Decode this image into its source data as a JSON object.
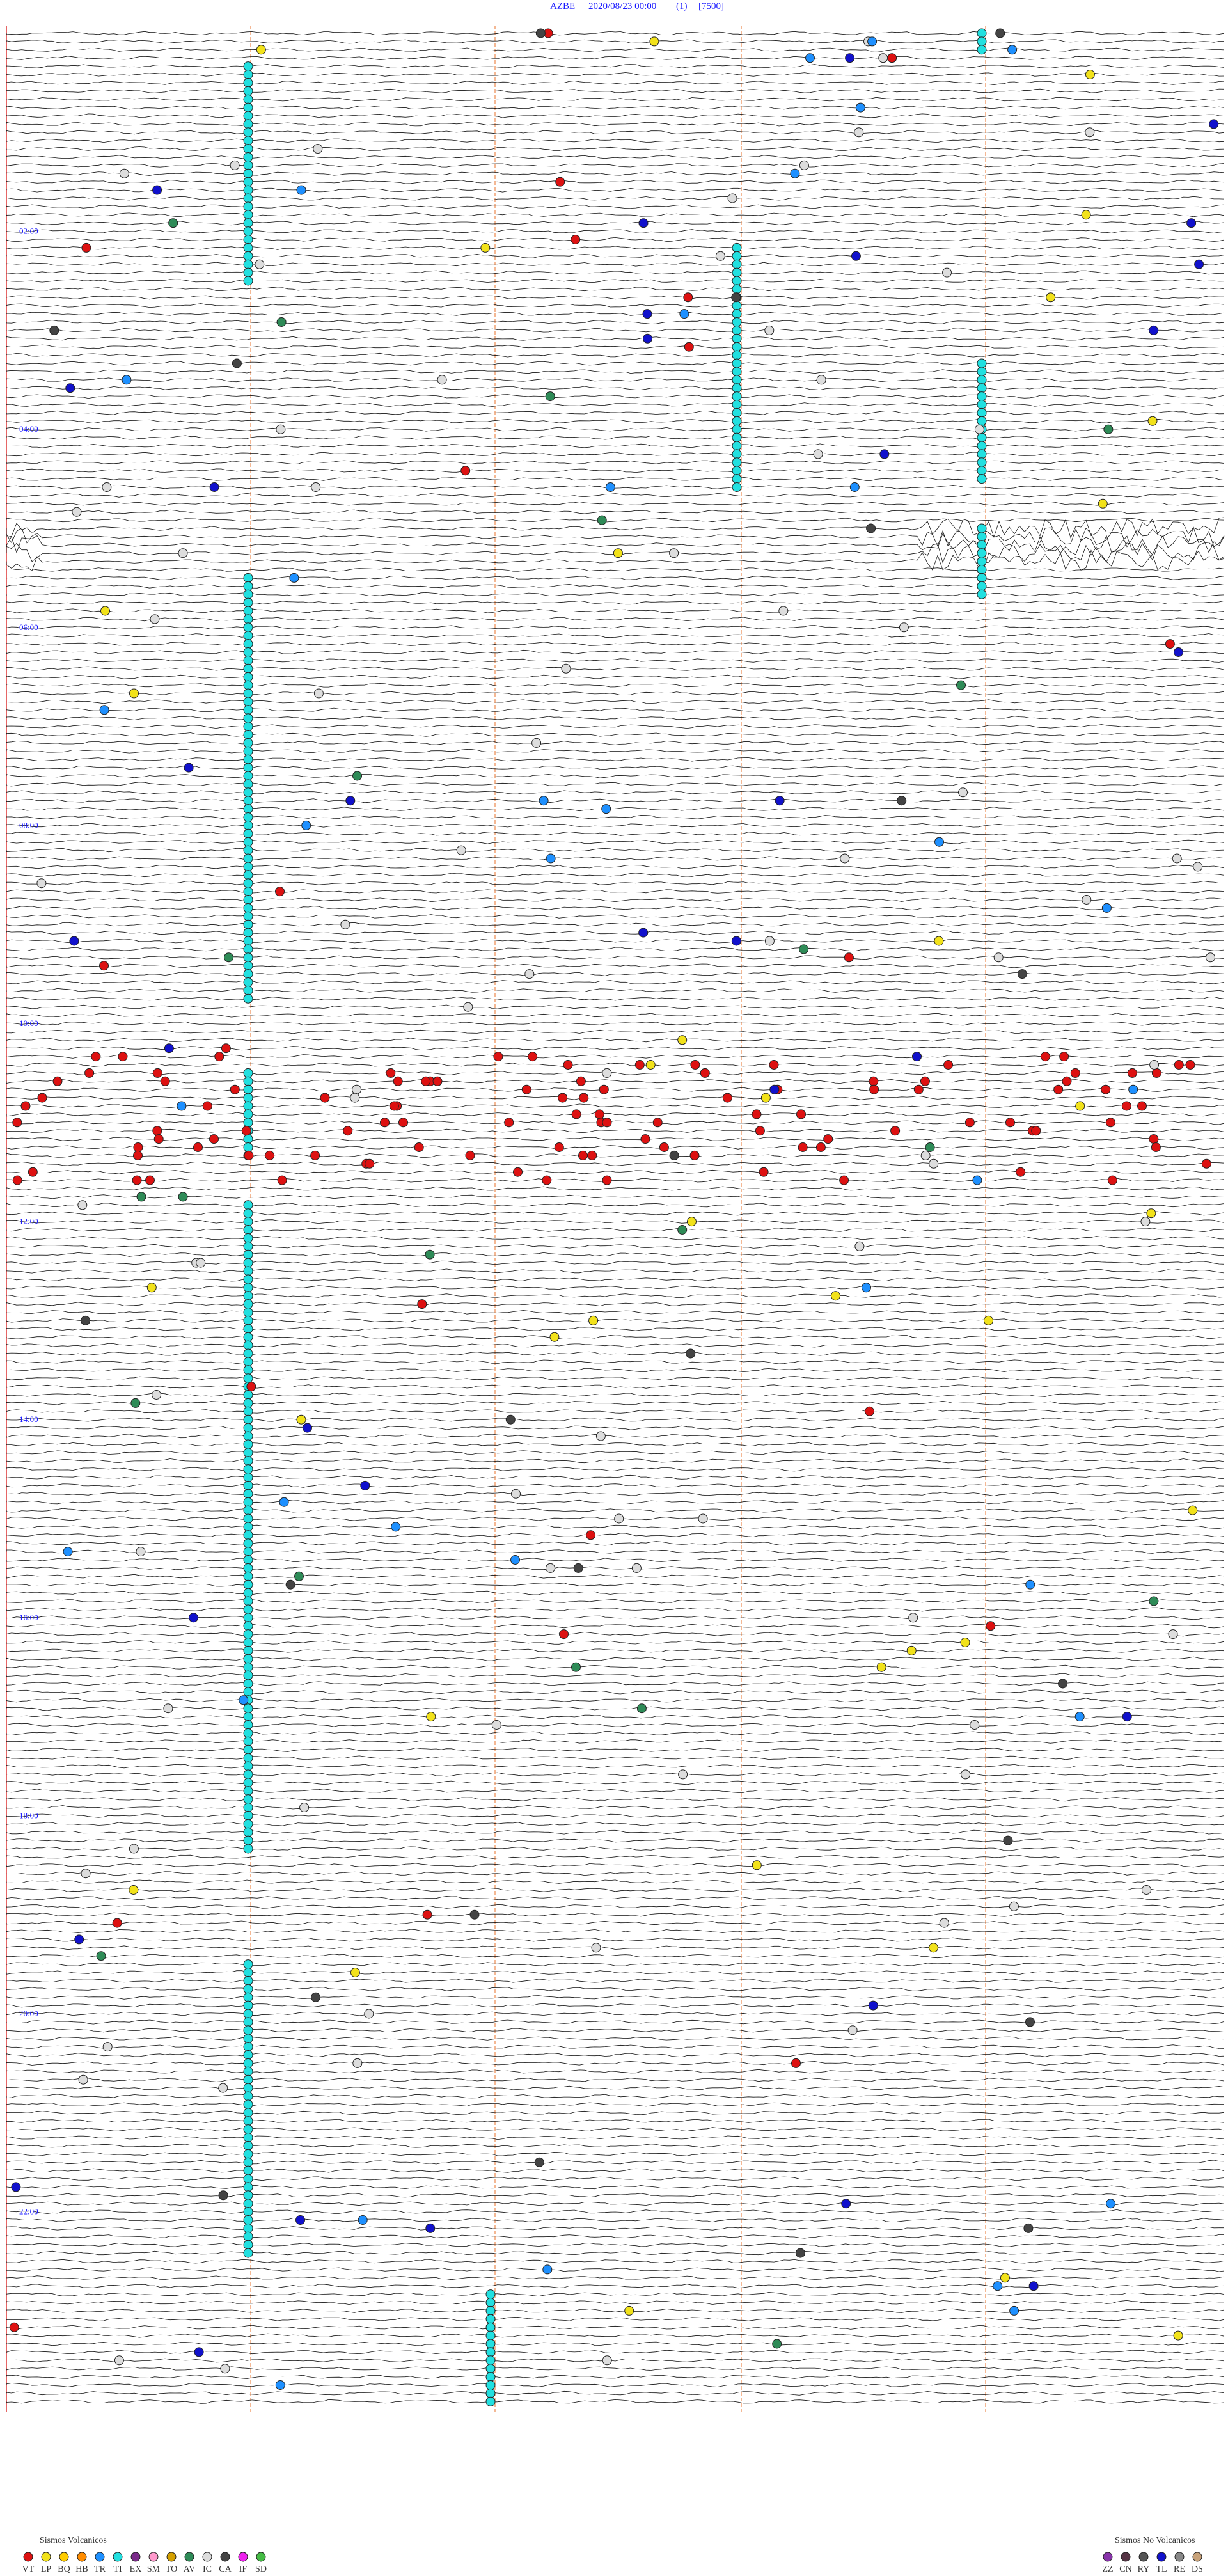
{
  "header": {
    "station": "AZBE",
    "datetime": "2020/08/23 00:00",
    "page": "(1)",
    "scale": "[7500]"
  },
  "hour_labels": [
    "02:00",
    "04:00",
    "06:00",
    "08:00",
    "10:00",
    "12:00",
    "14:00",
    "16:00",
    "18:00",
    "20:00",
    "22:00"
  ],
  "legend_volcanic": {
    "title": "Sismos Volcanicos",
    "items": [
      {
        "code": "VT",
        "color": "#dd1111"
      },
      {
        "code": "LP",
        "color": "#f2e21a"
      },
      {
        "code": "BQ",
        "color": "#ffcc00"
      },
      {
        "code": "HB",
        "color": "#ff8c00"
      },
      {
        "code": "TR",
        "color": "#1e90ff"
      },
      {
        "code": "TI",
        "color": "#22e0e0"
      },
      {
        "code": "EX",
        "color": "#7a2a8a"
      },
      {
        "code": "SM",
        "color": "#ff99cc"
      },
      {
        "code": "TO",
        "color": "#d4a000"
      },
      {
        "code": "AV",
        "color": "#2e8b57"
      },
      {
        "code": "IC",
        "color": "#dddddd"
      },
      {
        "code": "CA",
        "color": "#444444"
      },
      {
        "code": "IF",
        "color": "#ee22ee"
      },
      {
        "code": "SD",
        "color": "#44bb44"
      }
    ]
  },
  "legend_non_volcanic": {
    "title": "Sismos No Volcanicos",
    "items": [
      {
        "code": "ZZ",
        "color": "#8833aa"
      },
      {
        "code": "CN",
        "color": "#553344"
      },
      {
        "code": "RY",
        "color": "#555555"
      },
      {
        "code": "TL",
        "color": "#1111cc"
      },
      {
        "code": "RE",
        "color": "#888888"
      },
      {
        "code": "DS",
        "color": "#c8a27a"
      }
    ]
  }
}
